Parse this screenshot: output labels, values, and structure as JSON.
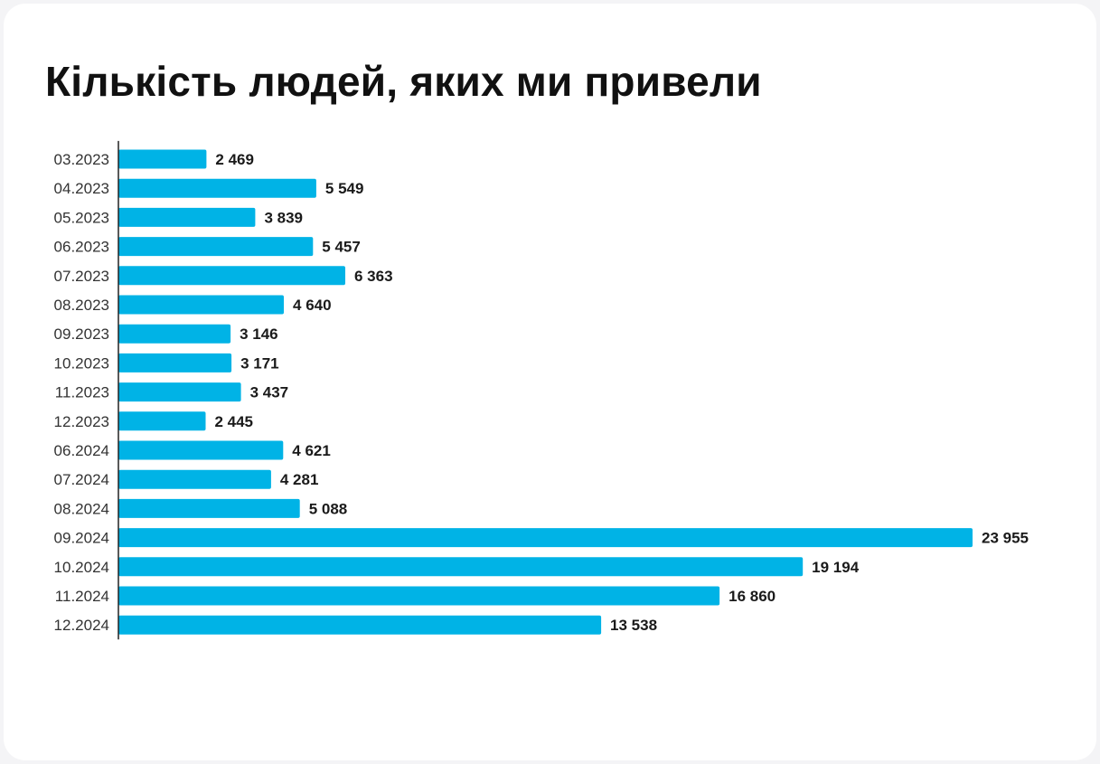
{
  "chart_data": {
    "type": "bar",
    "orientation": "horizontal",
    "title": "Кількість людей, яких ми привели",
    "categories": [
      "03.2023",
      "04.2023",
      "05.2023",
      "06.2023",
      "07.2023",
      "08.2023",
      "09.2023",
      "10.2023",
      "11.2023",
      "12.2023",
      "06.2024",
      "07.2024",
      "08.2024",
      "09.2024",
      "10.2024",
      "11.2024",
      "12.2024"
    ],
    "values": [
      2469,
      5549,
      3839,
      5457,
      6363,
      4640,
      3146,
      3171,
      3437,
      2445,
      4621,
      4281,
      5088,
      23955,
      19194,
      16860,
      13538
    ],
    "value_labels": [
      "2 469",
      "5 549",
      "3 839",
      "5 457",
      "6 363",
      "4 640",
      "3 146",
      "3 171",
      "3 437",
      "2 445",
      "4 621",
      "4 281",
      "5 088",
      "23 955",
      "19 194",
      "16 860",
      "13 538"
    ],
    "xlim": [
      0,
      23955
    ],
    "grid": false,
    "legend": "none",
    "bar_color": "#00b3e6",
    "axis_color": "#222222"
  }
}
